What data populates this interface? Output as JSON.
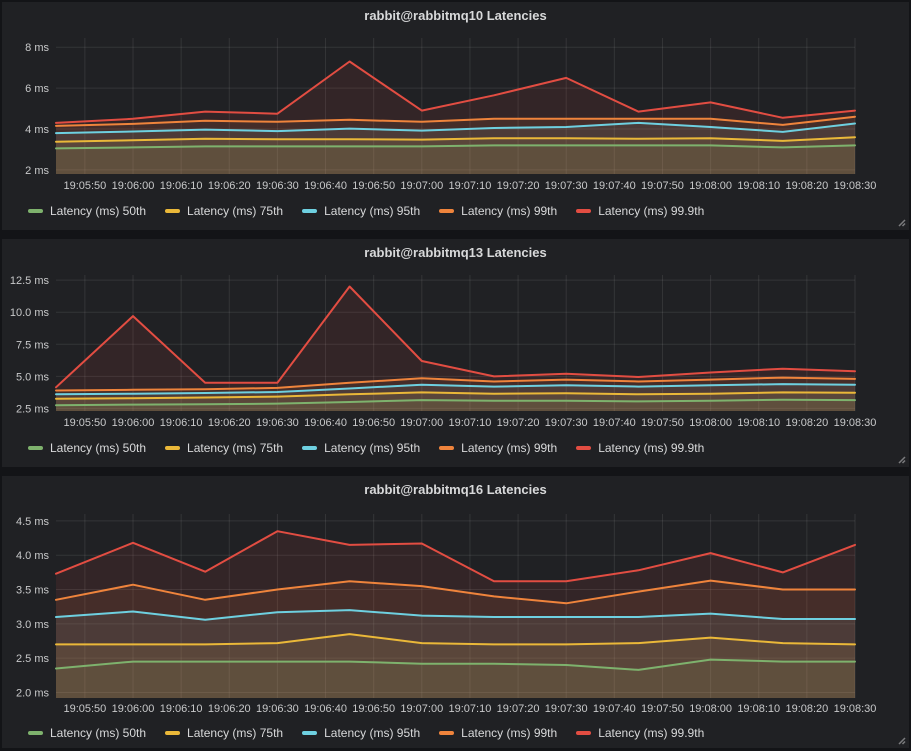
{
  "page": {
    "background": "#131417",
    "panel_background": "#202124"
  },
  "style": {
    "grid_color": "rgba(255,255,255,0.09)",
    "axis_text_color": "#c8c9ca",
    "title_color": "#d8d9da",
    "legend_text_color": "#d8d9da",
    "fill_opacity": 0.1,
    "line_width": 2,
    "palette": {
      "p50": "#7EB26D",
      "p75": "#EAB839",
      "p95": "#6ED0E0",
      "p99": "#EF843C",
      "p999": "#E24D42"
    }
  },
  "time_axis": {
    "domain_s": [
      0,
      166
    ],
    "tick_times_s": [
      6,
      16,
      26,
      36,
      46,
      56,
      66,
      76,
      86,
      96,
      106,
      116,
      126,
      136,
      146,
      156,
      166
    ],
    "tick_labels": [
      "19:05:50",
      "19:06:00",
      "19:06:10",
      "19:06:20",
      "19:06:30",
      "19:06:40",
      "19:06:50",
      "19:07:00",
      "19:07:10",
      "19:07:20",
      "19:07:30",
      "19:07:40",
      "19:07:50",
      "19:08:00",
      "19:08:10",
      "19:08:20",
      "19:08:30"
    ],
    "sample_times_s": [
      0,
      16,
      31,
      46,
      61,
      76,
      91,
      106,
      121,
      136,
      151,
      166
    ],
    "sample_labels": [
      "19:05:45",
      "19:06:00",
      "19:06:15",
      "19:06:30",
      "19:06:45",
      "19:07:00",
      "19:07:15",
      "19:07:30",
      "19:07:45",
      "19:08:00",
      "19:08:15",
      "19:08:30"
    ]
  },
  "chart_data": [
    {
      "id": "rabbitmq10",
      "type": "area",
      "title": "rabbit@rabbitmq10 Latencies",
      "unit": "ms",
      "grid": true,
      "legend_position": "bottom-left",
      "ylim": [
        1.8,
        8.45
      ],
      "y_ticks": [
        {
          "value": 8,
          "label": "8 ms"
        },
        {
          "value": 6,
          "label": "6 ms"
        },
        {
          "value": 4,
          "label": "4 ms"
        },
        {
          "value": 2,
          "label": "2 ms"
        }
      ],
      "x": [
        "19:05:45",
        "19:06:00",
        "19:06:15",
        "19:06:30",
        "19:06:45",
        "19:07:00",
        "19:07:15",
        "19:07:30",
        "19:07:45",
        "19:08:00",
        "19:08:15",
        "19:08:30"
      ],
      "series": [
        {
          "name": "Latency (ms) 50th",
          "color": "#7EB26D",
          "values": [
            3.05,
            3.1,
            3.15,
            3.15,
            3.15,
            3.15,
            3.2,
            3.2,
            3.2,
            3.2,
            3.1,
            3.2
          ]
        },
        {
          "name": "Latency (ms) 75th",
          "color": "#EAB839",
          "values": [
            3.38,
            3.45,
            3.52,
            3.5,
            3.5,
            3.48,
            3.55,
            3.55,
            3.52,
            3.55,
            3.42,
            3.6
          ]
        },
        {
          "name": "Latency (ms) 95th",
          "color": "#6ED0E0",
          "values": [
            3.8,
            3.88,
            3.97,
            3.9,
            4.02,
            3.92,
            4.05,
            4.1,
            4.3,
            4.1,
            3.86,
            4.27
          ]
        },
        {
          "name": "Latency (ms) 99th",
          "color": "#EF843C",
          "values": [
            4.15,
            4.25,
            4.4,
            4.35,
            4.45,
            4.35,
            4.5,
            4.5,
            4.5,
            4.5,
            4.2,
            4.6
          ]
        },
        {
          "name": "Latency (ms) 99.9th",
          "color": "#E24D42",
          "values": [
            4.3,
            4.5,
            4.85,
            4.75,
            7.3,
            4.9,
            5.65,
            6.5,
            4.85,
            5.3,
            4.55,
            4.9
          ]
        }
      ]
    },
    {
      "id": "rabbitmq13",
      "type": "area",
      "title": "rabbit@rabbitmq13 Latencies",
      "unit": "ms",
      "grid": true,
      "legend_position": "bottom-left",
      "ylim": [
        2.3,
        12.9
      ],
      "y_ticks": [
        {
          "value": 12.5,
          "label": "12.5 ms"
        },
        {
          "value": 10.0,
          "label": "10.0 ms"
        },
        {
          "value": 7.5,
          "label": "7.5 ms"
        },
        {
          "value": 5.0,
          "label": "5.0 ms"
        },
        {
          "value": 2.5,
          "label": "2.5 ms"
        }
      ],
      "x": [
        "19:05:45",
        "19:06:00",
        "19:06:15",
        "19:06:30",
        "19:06:45",
        "19:07:00",
        "19:07:15",
        "19:07:30",
        "19:07:45",
        "19:08:00",
        "19:08:15",
        "19:08:30"
      ],
      "series": [
        {
          "name": "Latency (ms) 50th",
          "color": "#7EB26D",
          "values": [
            2.75,
            2.8,
            2.82,
            2.88,
            3.0,
            3.15,
            3.1,
            3.1,
            3.05,
            3.1,
            3.18,
            3.15
          ]
        },
        {
          "name": "Latency (ms) 75th",
          "color": "#EAB839",
          "values": [
            3.25,
            3.3,
            3.35,
            3.42,
            3.6,
            3.75,
            3.65,
            3.68,
            3.6,
            3.65,
            3.75,
            3.72
          ]
        },
        {
          "name": "Latency (ms) 95th",
          "color": "#6ED0E0",
          "values": [
            3.6,
            3.65,
            3.7,
            3.78,
            4.05,
            4.35,
            4.2,
            4.3,
            4.2,
            4.3,
            4.4,
            4.35
          ]
        },
        {
          "name": "Latency (ms) 99th",
          "color": "#EF843C",
          "values": [
            3.9,
            3.95,
            4.0,
            4.1,
            4.5,
            4.85,
            4.6,
            4.75,
            4.6,
            4.75,
            4.9,
            4.8
          ]
        },
        {
          "name": "Latency (ms) 99.9th",
          "color": "#E24D42",
          "values": [
            4.15,
            9.7,
            4.5,
            4.5,
            12.0,
            6.2,
            5.0,
            5.2,
            4.95,
            5.3,
            5.6,
            5.4
          ]
        }
      ]
    },
    {
      "id": "rabbitmq16",
      "type": "area",
      "title": "rabbit@rabbitmq16 Latencies",
      "unit": "ms",
      "grid": true,
      "legend_position": "bottom-left",
      "ylim": [
        1.92,
        4.6
      ],
      "y_ticks": [
        {
          "value": 4.5,
          "label": "4.5 ms"
        },
        {
          "value": 4.0,
          "label": "4.0 ms"
        },
        {
          "value": 3.5,
          "label": "3.5 ms"
        },
        {
          "value": 3.0,
          "label": "3.0 ms"
        },
        {
          "value": 2.5,
          "label": "2.5 ms"
        },
        {
          "value": 2.0,
          "label": "2.0 ms"
        }
      ],
      "x": [
        "19:05:45",
        "19:06:00",
        "19:06:15",
        "19:06:30",
        "19:06:45",
        "19:07:00",
        "19:07:15",
        "19:07:30",
        "19:07:45",
        "19:08:00",
        "19:08:15",
        "19:08:30"
      ],
      "series": [
        {
          "name": "Latency (ms) 50th",
          "color": "#7EB26D",
          "values": [
            2.35,
            2.45,
            2.45,
            2.45,
            2.45,
            2.42,
            2.42,
            2.4,
            2.33,
            2.48,
            2.45,
            2.45
          ]
        },
        {
          "name": "Latency (ms) 75th",
          "color": "#EAB839",
          "values": [
            2.7,
            2.7,
            2.7,
            2.72,
            2.85,
            2.72,
            2.7,
            2.7,
            2.72,
            2.8,
            2.72,
            2.7
          ]
        },
        {
          "name": "Latency (ms) 95th",
          "color": "#6ED0E0",
          "values": [
            3.1,
            3.18,
            3.06,
            3.17,
            3.2,
            3.12,
            3.1,
            3.1,
            3.1,
            3.15,
            3.07,
            3.07
          ]
        },
        {
          "name": "Latency (ms) 99th",
          "color": "#EF843C",
          "values": [
            3.35,
            3.57,
            3.35,
            3.5,
            3.62,
            3.55,
            3.4,
            3.3,
            3.47,
            3.63,
            3.5,
            3.5
          ]
        },
        {
          "name": "Latency (ms) 99.9th",
          "color": "#E24D42",
          "values": [
            3.73,
            4.18,
            3.76,
            4.35,
            4.15,
            4.17,
            3.62,
            3.62,
            3.78,
            4.03,
            3.75,
            4.15
          ]
        }
      ]
    }
  ]
}
